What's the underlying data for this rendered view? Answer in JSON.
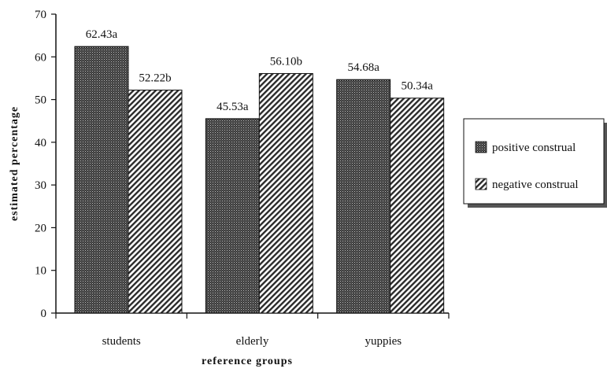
{
  "chart_data": {
    "type": "bar",
    "categories": [
      "students",
      "elderly",
      "yuppies"
    ],
    "series": [
      {
        "name": "positive construal",
        "values": [
          62.43,
          45.53,
          54.68
        ],
        "labels": [
          "62.43a",
          "45.53a",
          "54.68a"
        ],
        "pattern": "dots",
        "color": "#2a2a2a"
      },
      {
        "name": "negative construal",
        "values": [
          52.22,
          56.1,
          50.34
        ],
        "labels": [
          "52.22b",
          "56.10b",
          "50.34a"
        ],
        "pattern": "diagonal-hatch",
        "color": "#2a2a2a"
      }
    ],
    "xlabel": "reference groups",
    "ylabel": "estimated percentage",
    "ylim": [
      0,
      70
    ],
    "yticks": [
      0,
      10,
      20,
      30,
      40,
      50,
      60,
      70
    ],
    "grid": false,
    "legend_position": "right"
  }
}
